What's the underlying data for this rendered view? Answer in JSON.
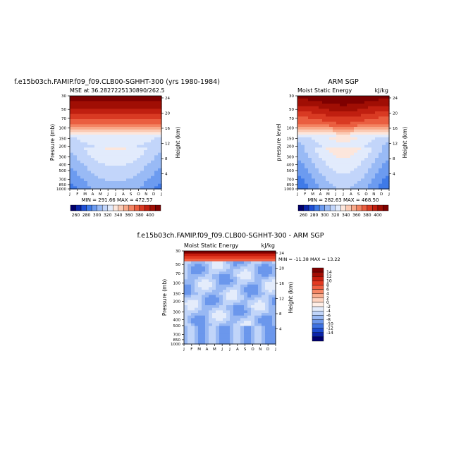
{
  "months": [
    "J",
    "F",
    "M",
    "A",
    "M",
    "J",
    "J",
    "A",
    "S",
    "O",
    "N",
    "D",
    "J"
  ],
  "pressure_ticks": [
    "30",
    "50",
    "70",
    "100",
    "150",
    "200",
    "300",
    "400",
    "500",
    "700",
    "850",
    "1000"
  ],
  "height_ticks": [
    "4",
    "8",
    "12",
    "16",
    "20",
    "24"
  ],
  "panels": [
    {
      "title": "f.e15b03ch.FAMIP.f09_f09.CLB00-SGHHT-300 (yrs 1980-1984)",
      "subtitle_left": "MSE at 36.2827225130890/262.5",
      "subtitle_right": "",
      "ylabel": "Pressure (mb)",
      "right_label": "Height (km)",
      "minmax": "MIN = 291.66 MAX = 472.57"
    },
    {
      "title": "ARM SGP",
      "subtitle_left": "Moist Static Energy",
      "subtitle_right": "kJ/kg",
      "ylabel": "pressure level",
      "right_label": "Height (km)",
      "minmax": "MIN = 282.63 MAX = 468.50"
    },
    {
      "title": "f.e15b03ch.FAMIP.f09_f09.CLB00-SGHHT-300 - ARM SGP",
      "subtitle_left": "Moist Static Energy",
      "subtitle_right": "kJ/kg",
      "ylabel": "Pressure (mb)",
      "right_label": "Height (km)",
      "minmax": "MIN = -11.38 MAX = 13.22"
    }
  ],
  "colorbar_abs": {
    "labels": [
      "280",
      "300",
      "320",
      "340",
      "360",
      "380",
      "400"
    ],
    "first_label": "260",
    "colors": [
      "#02006b",
      "#0a24a8",
      "#1f4fd6",
      "#3f7ae8",
      "#6c9bf0",
      "#99baf5",
      "#c2d5fa",
      "#e2ebfc",
      "#fce6dc",
      "#fbcab4",
      "#f8a98a",
      "#f38463",
      "#ea5e40",
      "#d93a23",
      "#c01f10",
      "#a00e04",
      "#7e0000"
    ]
  },
  "colorbar_diff": {
    "labels": [
      "14",
      "12",
      "10",
      "8",
      "6",
      "4",
      "2",
      "0",
      "-2",
      "-4",
      "-6",
      "-8",
      "-10",
      "-12",
      "-14"
    ],
    "colors": [
      "#7e0000",
      "#a30d04",
      "#c81d0e",
      "#e33a22",
      "#f05f42",
      "#f58766",
      "#f9ae90",
      "#fdd3c0",
      "#ffeee6",
      "#e4ecfb",
      "#c1d5f9",
      "#98b8f3",
      "#6b97ec",
      "#3e72e2",
      "#1d4bd0",
      "#0b23a8",
      "#01006e"
    ]
  },
  "chart_data": [
    {
      "type": "heatmap",
      "title": "f.e15b03ch.FAMIP.f09_f09.CLB00-SGHHT-300 (yrs 1980-1984)",
      "subtitle": "MSE at 36.2827225130890/262.5",
      "xlabel": "",
      "ylabel": "Pressure (mb)",
      "y2label": "Height (km)",
      "x": [
        "J",
        "F",
        "M",
        "A",
        "M",
        "J",
        "J",
        "A",
        "S",
        "O",
        "N",
        "D",
        "J"
      ],
      "y_pressure_mb": [
        30,
        50,
        70,
        100,
        150,
        200,
        300,
        400,
        500,
        700,
        850,
        1000
      ],
      "min": 291.66,
      "max": 472.57,
      "units": "kJ/kg"
    },
    {
      "type": "heatmap",
      "title": "ARM SGP",
      "subtitle": "Moist Static Energy",
      "units": "kJ/kg",
      "ylabel": "pressure level",
      "y2label": "Height (km)",
      "x": [
        "J",
        "F",
        "M",
        "A",
        "M",
        "J",
        "J",
        "A",
        "S",
        "O",
        "N",
        "D",
        "J"
      ],
      "y_pressure_mb": [
        30,
        50,
        70,
        100,
        150,
        200,
        300,
        400,
        500,
        700,
        850,
        1000
      ],
      "min": 282.63,
      "max": 468.5
    },
    {
      "type": "heatmap",
      "title": "f.e15b03ch.FAMIP.f09_f09.CLB00-SGHHT-300 - ARM SGP",
      "subtitle": "Moist Static Energy",
      "units": "kJ/kg",
      "ylabel": "Pressure (mb)",
      "y2label": "Height (km)",
      "x": [
        "J",
        "F",
        "M",
        "A",
        "M",
        "J",
        "J",
        "A",
        "S",
        "O",
        "N",
        "D",
        "J"
      ],
      "y_pressure_mb": [
        30,
        50,
        70,
        100,
        150,
        200,
        300,
        400,
        500,
        700,
        850,
        1000
      ],
      "min": -11.38,
      "max": 13.22,
      "colorbar_levels": [
        14,
        12,
        10,
        8,
        6,
        4,
        2,
        0,
        -2,
        -4,
        -6,
        -8,
        -10,
        -12,
        -14
      ]
    }
  ]
}
